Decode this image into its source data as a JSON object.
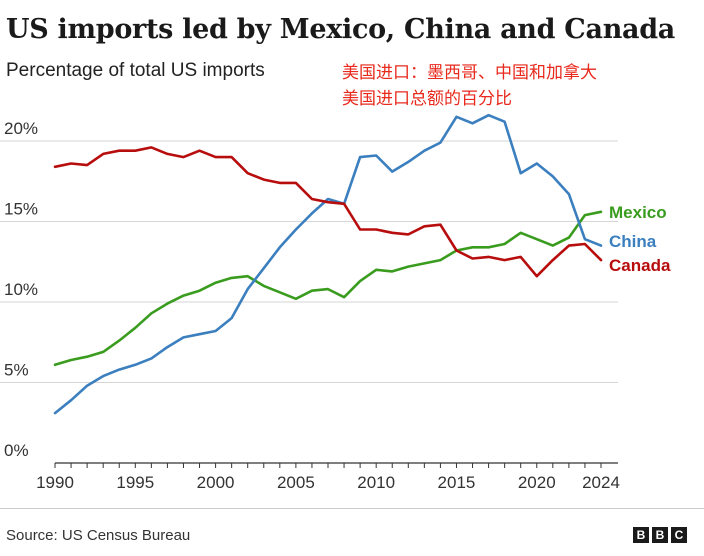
{
  "title": "US imports led by Mexico, China and Canada",
  "subtitle": "Percentage of total US imports",
  "note_line1": "美国进口：墨西哥、中国和加拿大",
  "note_line2": "美国进口总额的百分比",
  "source": "Source: US Census Bureau",
  "logo": "BBC",
  "chart_data": {
    "type": "line",
    "x": [
      1990,
      1991,
      1992,
      1993,
      1994,
      1995,
      1996,
      1997,
      1998,
      1999,
      2000,
      2001,
      2002,
      2003,
      2004,
      2005,
      2006,
      2007,
      2008,
      2009,
      2010,
      2011,
      2012,
      2013,
      2014,
      2015,
      2016,
      2017,
      2018,
      2019,
      2020,
      2021,
      2022,
      2023,
      2024
    ],
    "xticks": [
      "1990",
      "1995",
      "2000",
      "2005",
      "2010",
      "2015",
      "2020",
      "2024"
    ],
    "yticks": [
      "0%",
      "5%",
      "10%",
      "15%",
      "20%"
    ],
    "ylim": [
      0,
      22
    ],
    "grid": true,
    "series": [
      {
        "name": "Mexico",
        "color": "#3a9c1e",
        "values": [
          6.1,
          6.4,
          6.6,
          6.9,
          7.6,
          8.4,
          9.3,
          9.9,
          10.4,
          10.7,
          11.2,
          11.5,
          11.6,
          11.0,
          10.6,
          10.2,
          10.7,
          10.8,
          10.3,
          11.3,
          12.0,
          11.9,
          12.2,
          12.4,
          12.6,
          13.2,
          13.4,
          13.4,
          13.6,
          14.3,
          13.9,
          13.5,
          14.0,
          15.4,
          15.6
        ]
      },
      {
        "name": "China",
        "color": "#3b7fbf",
        "values": [
          3.1,
          3.9,
          4.8,
          5.4,
          5.8,
          6.1,
          6.5,
          7.2,
          7.8,
          8.0,
          8.2,
          9.0,
          10.8,
          12.1,
          13.4,
          14.5,
          15.5,
          16.4,
          16.1,
          19.0,
          19.1,
          18.1,
          18.7,
          19.4,
          19.9,
          21.5,
          21.1,
          21.6,
          21.2,
          18.0,
          18.6,
          17.8,
          16.7,
          13.9,
          13.5
        ]
      },
      {
        "name": "Canada",
        "color": "#b80d0d",
        "values": [
          18.4,
          18.6,
          18.5,
          19.2,
          19.4,
          19.4,
          19.6,
          19.2,
          19.0,
          19.4,
          19.0,
          19.0,
          18.0,
          17.6,
          17.4,
          17.4,
          16.4,
          16.2,
          16.1,
          14.5,
          14.5,
          14.3,
          14.2,
          14.7,
          14.8,
          13.2,
          12.7,
          12.8,
          12.6,
          12.8,
          11.6,
          12.6,
          13.5,
          13.6,
          12.6
        ]
      }
    ]
  }
}
